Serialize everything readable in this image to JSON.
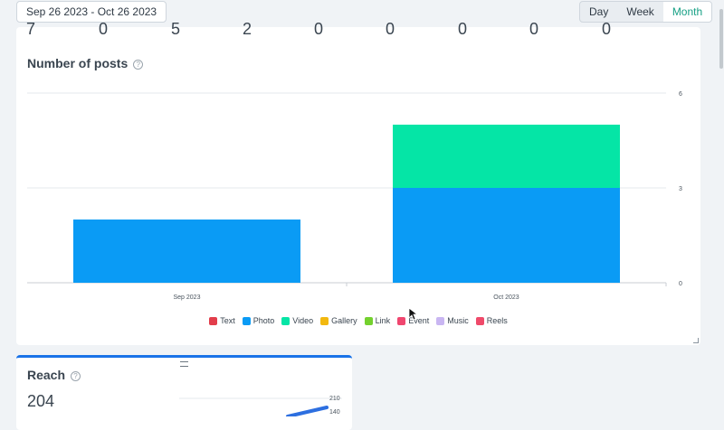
{
  "toolbar": {
    "date_range": "Sep 26 2023 - Oct 26 2023",
    "periods": [
      {
        "label": "Day",
        "active": false
      },
      {
        "label": "Week",
        "active": false
      },
      {
        "label": "Month",
        "active": true
      }
    ]
  },
  "stats_row": [
    "7",
    "0",
    "5",
    "2",
    "0",
    "0",
    "0",
    "0",
    "0"
  ],
  "posts_card": {
    "title": "Number of posts",
    "help_icon": "?"
  },
  "chart_data": {
    "type": "bar",
    "stacked": true,
    "categories": [
      "Sep 2023",
      "Oct 2023"
    ],
    "series": [
      {
        "name": "Text",
        "color": "#e23d4b",
        "values": [
          0,
          0
        ]
      },
      {
        "name": "Photo",
        "color": "#0a9bf5",
        "values": [
          2,
          3
        ]
      },
      {
        "name": "Video",
        "color": "#05e5a6",
        "values": [
          0,
          2
        ]
      },
      {
        "name": "Gallery",
        "color": "#f2b80f",
        "values": [
          0,
          0
        ]
      },
      {
        "name": "Link",
        "color": "#74d12e",
        "values": [
          0,
          0
        ]
      },
      {
        "name": "Event",
        "color": "#f0466f",
        "values": [
          0,
          0
        ]
      },
      {
        "name": "Music",
        "color": "#c9b6f2",
        "values": [
          0,
          0
        ]
      },
      {
        "name": "Reels",
        "color": "#ef4a6a",
        "values": [
          0,
          0
        ]
      }
    ],
    "y_ticks": [
      "6",
      "3",
      "0"
    ],
    "ylim": [
      0,
      6
    ],
    "grid": true,
    "legend": "bottom"
  },
  "reach_card": {
    "title": "Reach",
    "value": "204",
    "help_icon": "?",
    "mini_chart": {
      "y_ticks": [
        "210",
        "140"
      ],
      "accent": "#2d6fe0"
    }
  }
}
